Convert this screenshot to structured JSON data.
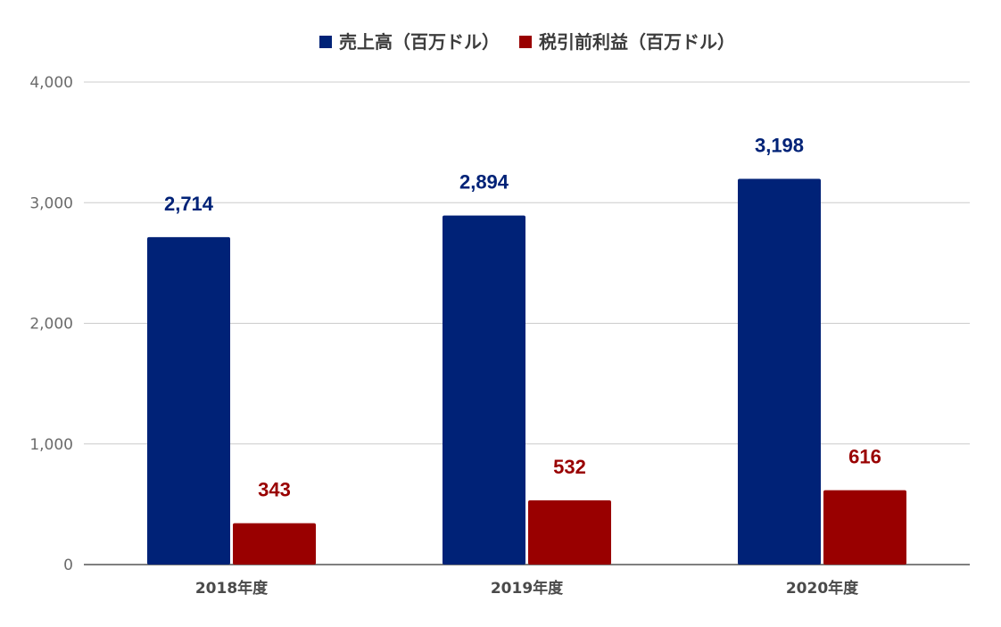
{
  "chart_data": {
    "type": "bar",
    "title": "",
    "xlabel": "",
    "ylabel": "",
    "categories": [
      "2018年度",
      "2019年度",
      "2020年度"
    ],
    "series": [
      {
        "name": "売上高（百万ドル）",
        "color": "#002277",
        "values": [
          2714,
          2894,
          3198
        ],
        "labels": [
          "2,714",
          "2,894",
          "3,198"
        ]
      },
      {
        "name": "税引前利益（百万ドル）",
        "color": "#990000",
        "values": [
          343,
          532,
          616
        ],
        "labels": [
          "343",
          "532",
          "616"
        ]
      }
    ],
    "ylim": [
      0,
      4000
    ],
    "yticks": [
      0,
      1000,
      2000,
      3000,
      4000
    ],
    "ytick_labels": [
      "0",
      "1,000",
      "2,000",
      "3,000",
      "4,000"
    ],
    "grid": true,
    "legend_position": "top-center",
    "data_labels": true
  }
}
